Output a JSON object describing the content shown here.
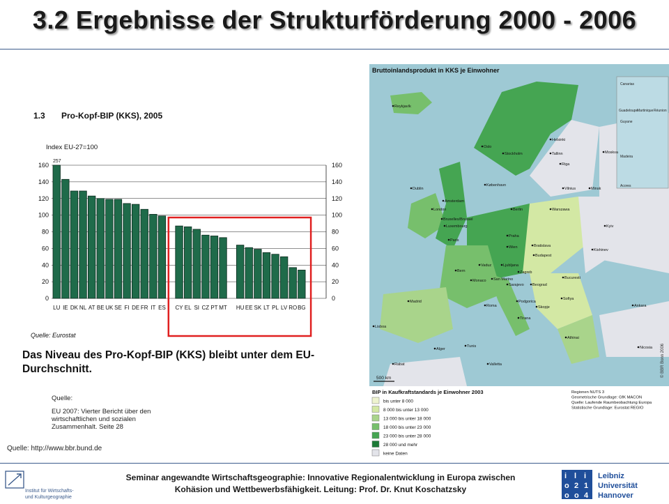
{
  "slide": {
    "title": "3.2 Ergebnisse der Strukturförderung 2000 - 2006",
    "summary": "Das Niveau des Pro-Kopf-BIP (KKS) bleibt unter dem EU-Durchschnitt.",
    "source_label": "Quelle:",
    "source_text": "EU 2007: Vierter Bericht über den wirtschaftlichen und sozialen Zusammenhalt. Seite 28",
    "map_source": "Quelle: http://www.bbr.bund.de"
  },
  "chart_data": {
    "type": "bar",
    "number": "1.3",
    "title": "Pro-Kopf-BIP (KKS), 2005",
    "ylabel": "Index EU-27=100",
    "source": "Quelle: Eurostat",
    "ylim": [
      0,
      160
    ],
    "yticks": [
      "160",
      "140",
      "120",
      "100",
      "80",
      "60",
      "40",
      "20",
      "0"
    ],
    "groups": [
      {
        "categories": [
          "LU",
          "IE",
          "DK",
          "NL",
          "AT",
          "BE",
          "UK",
          "SE",
          "FI",
          "DE",
          "FR",
          "IT",
          "ES"
        ],
        "values": [
          160,
          143,
          129,
          129,
          123,
          120,
          119,
          119,
          114,
          113,
          107,
          101,
          99
        ]
      },
      {
        "categories": [
          "CY",
          "EL",
          "SI",
          "CZ",
          "PT",
          "MT"
        ],
        "values": [
          87,
          86,
          83,
          76,
          75,
          73
        ]
      },
      {
        "categories": [
          "HU",
          "EE",
          "SK",
          "LT",
          "PL",
          "LV",
          "RO",
          "BG"
        ],
        "values": [
          64,
          61,
          59,
          55,
          53,
          50,
          37,
          34
        ]
      }
    ],
    "data_label": "257",
    "grid": true,
    "highlight": "CY–BG"
  },
  "map": {
    "title": "Bruttoinlandsprodukt in KKS je Einwohner",
    "inset_labels": [
      "Canarias",
      "Guadeloupe",
      "Martinique",
      "Réunion",
      "Guyane",
      "Madeira",
      "Acores"
    ],
    "cities": [
      {
        "name": "Reykjavík"
      },
      {
        "name": "Oslo"
      },
      {
        "name": "Stockholm"
      },
      {
        "name": "Helsinki"
      },
      {
        "name": "Tallinn"
      },
      {
        "name": "Riga"
      },
      {
        "name": "Moskva"
      },
      {
        "name": "Dublin"
      },
      {
        "name": "København"
      },
      {
        "name": "Vilnius"
      },
      {
        "name": "Minsk"
      },
      {
        "name": "London"
      },
      {
        "name": "Amsterdam"
      },
      {
        "name": "Berlin"
      },
      {
        "name": "Warszawa"
      },
      {
        "name": "Bruxelles/Brussel"
      },
      {
        "name": "Luxembourg"
      },
      {
        "name": "Kyiv"
      },
      {
        "name": "Paris"
      },
      {
        "name": "Praha"
      },
      {
        "name": "Wien"
      },
      {
        "name": "Bratislava"
      },
      {
        "name": "Kishinev"
      },
      {
        "name": "Bern"
      },
      {
        "name": "Vaduz"
      },
      {
        "name": "Budapest"
      },
      {
        "name": "Ljubljana"
      },
      {
        "name": "Zagreb"
      },
      {
        "name": "Beograd"
      },
      {
        "name": "Sarajevo"
      },
      {
        "name": "Bucuresti"
      },
      {
        "name": "Podgorica"
      },
      {
        "name": "Sofiya"
      },
      {
        "name": "Skopje"
      },
      {
        "name": "Tirana"
      },
      {
        "name": "Madrid"
      },
      {
        "name": "Lisboa"
      },
      {
        "name": "Roma"
      },
      {
        "name": "Ankara"
      },
      {
        "name": "Athinai"
      },
      {
        "name": "Rabat"
      },
      {
        "name": "Alger"
      },
      {
        "name": "Tunis"
      },
      {
        "name": "Valletta"
      },
      {
        "name": "Nicosia"
      },
      {
        "name": "Monaco"
      },
      {
        "name": "San Marino"
      }
    ],
    "scale": "500 km",
    "copyright": "© BBR Bonn 2006",
    "legend_title": "BIP in Kaufkraftstandards je Einwohner 2003",
    "legend": [
      {
        "label": "bis unter  8 000",
        "color": "#eef3cf"
      },
      {
        "label": "8 000 bis unter 13 000",
        "color": "#d3e8a4"
      },
      {
        "label": "13 000 bis unter 18 000",
        "color": "#a9d48b"
      },
      {
        "label": "18 000 bis unter 23 000",
        "color": "#77bf6c"
      },
      {
        "label": "23 000 bis unter 28 000",
        "color": "#45a552"
      },
      {
        "label": "28 000 und mehr",
        "color": "#1c7a36"
      },
      {
        "label": "keine Daten",
        "color": "#e3e4ea"
      }
    ],
    "notes": [
      "Regionen NUTS 3",
      "Geometrische Grundlage: GfK MACON",
      "Quelle: Laufende Raumbeobachtung Europa",
      "Statistische Grundlage: Eurostat REGIO"
    ]
  },
  "footer": {
    "line1": "Seminar angewandte Wirtschaftsgeographie:  Innovative Regionalentwicklung  in Europa zwischen",
    "line2": "Kohäsion und Wettbewerbsfähigkeit.   Leitung: Prof. Dr. Knut Koschatzsky",
    "left_logo_lines": [
      "Institut für Wirtschafts-",
      "und Kulturgeographie"
    ],
    "right_logo_lines": [
      "Leibniz",
      "Universität",
      "Hannover"
    ],
    "right_logo_mark": [
      "i",
      "l",
      "i",
      "o",
      "2",
      "1",
      "o",
      "o",
      "4"
    ]
  }
}
